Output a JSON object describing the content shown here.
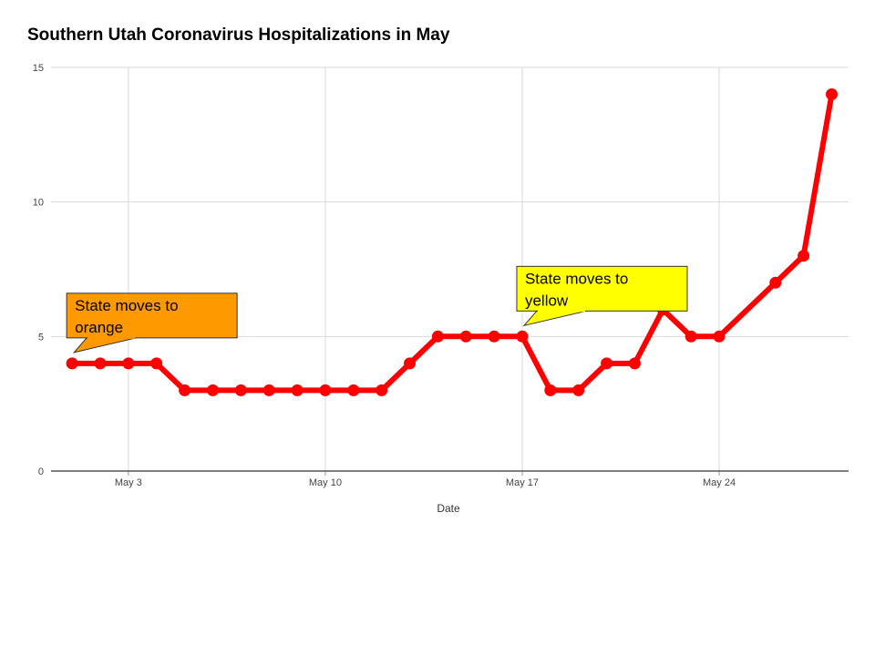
{
  "chart_data": {
    "type": "line",
    "title": "Southern Utah Coronavirus Hospitalizations in May",
    "xlabel": "Date",
    "ylabel": "",
    "ylim": [
      0,
      15
    ],
    "yticks": [
      "0",
      "5",
      "10",
      "15"
    ],
    "xticks": [
      {
        "label": "May 3",
        "day": 3
      },
      {
        "label": "May 10",
        "day": 10
      },
      {
        "label": "May 17",
        "day": 17
      },
      {
        "label": "May 24",
        "day": 24
      }
    ],
    "grid": true,
    "series": [
      {
        "color": "#ff0000",
        "x": [
          "May 1",
          "May 2",
          "May 3",
          "May 4",
          "May 5",
          "May 6",
          "May 7",
          "May 8",
          "May 9",
          "May 10",
          "May 11",
          "May 12",
          "May 13",
          "May 14",
          "May 15",
          "May 16",
          "May 17",
          "May 18",
          "May 19",
          "May 20",
          "May 21",
          "May 22",
          "May 23",
          "May 24",
          "May 26",
          "May 27",
          "May 28"
        ],
        "days": [
          1,
          2,
          3,
          4,
          5,
          6,
          7,
          8,
          9,
          10,
          11,
          12,
          13,
          14,
          15,
          16,
          17,
          18,
          19,
          20,
          21,
          22,
          23,
          24,
          26,
          27,
          28
        ],
        "values": [
          4,
          4,
          4,
          4,
          3,
          3,
          3,
          3,
          3,
          3,
          3,
          3,
          4,
          5,
          5,
          5,
          5,
          3,
          3,
          4,
          4,
          6,
          5,
          5,
          7,
          8,
          14
        ]
      }
    ],
    "annotations": [
      {
        "text_lines": [
          "State moves to",
          "orange"
        ],
        "day": 1,
        "value": 4,
        "background": "#ff9900"
      },
      {
        "text_lines": [
          "State moves to",
          "yellow"
        ],
        "day": 17,
        "value": 5,
        "background": "#ffff00"
      }
    ]
  }
}
